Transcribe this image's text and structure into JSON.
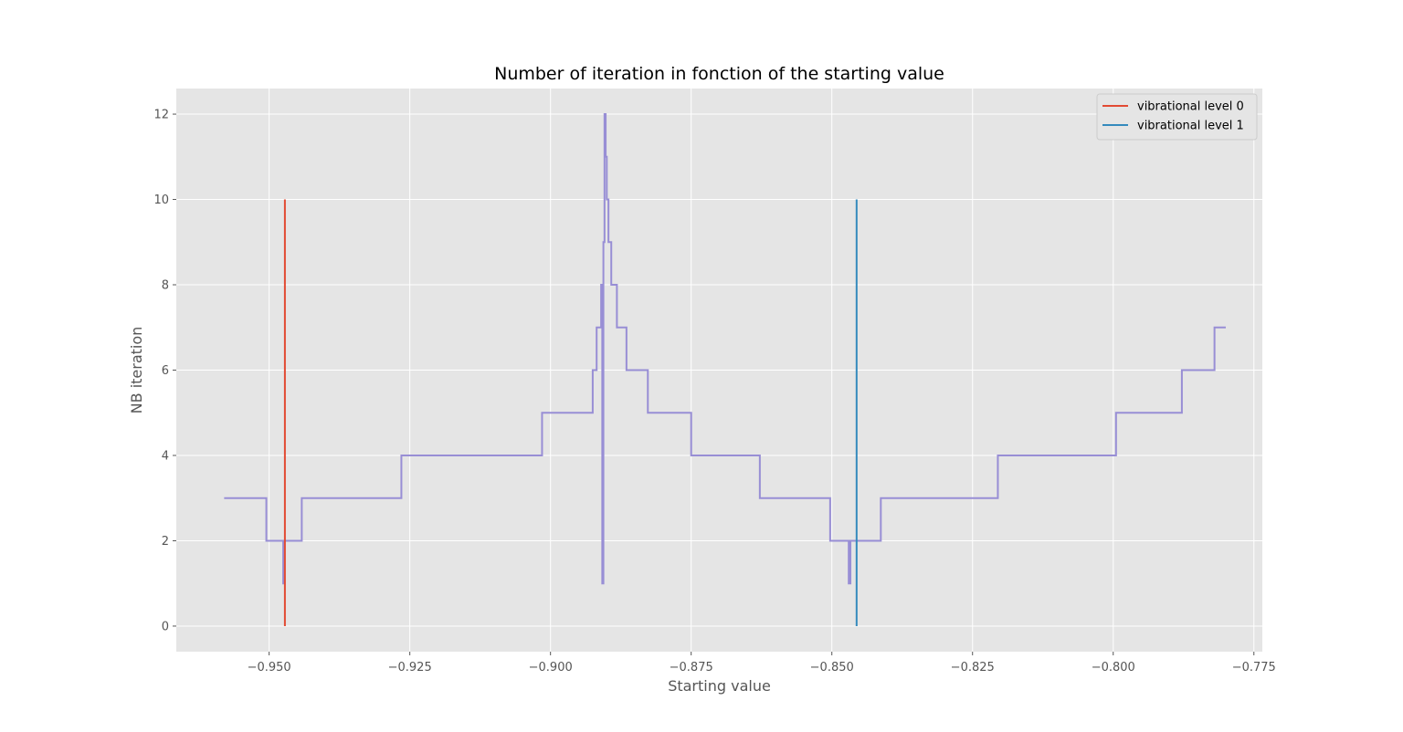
{
  "chart_data": {
    "type": "line",
    "title": "Number of iteration in fonction of the starting value",
    "xlabel": "Starting value",
    "ylabel": "NB iteration",
    "xlim": [
      -0.9665,
      -0.7735
    ],
    "ylim": [
      -0.6,
      12.6
    ],
    "xticks": [
      -0.95,
      -0.925,
      -0.9,
      -0.875,
      -0.85,
      -0.825,
      -0.8,
      -0.775
    ],
    "xtick_labels": [
      "−0.950",
      "−0.925",
      "−0.900",
      "−0.875",
      "−0.850",
      "−0.825",
      "−0.800",
      "−0.775"
    ],
    "yticks": [
      0,
      2,
      4,
      6,
      8,
      10,
      12
    ],
    "ytick_labels": [
      "0",
      "2",
      "4",
      "6",
      "8",
      "10",
      "12"
    ],
    "grid": true,
    "legend_position": "top-right",
    "legend": [
      {
        "name": "vibrational level 0",
        "color": "#E24A33"
      },
      {
        "name": "vibrational level 1",
        "color": "#348ABD"
      }
    ],
    "vlines": [
      {
        "name": "vibrational level 0",
        "x": -0.9472,
        "ymin": 0,
        "ymax": 10,
        "color": "#E24A33"
      },
      {
        "name": "vibrational level 1",
        "x": -0.8456,
        "ymin": 0,
        "ymax": 10,
        "color": "#348ABD"
      }
    ],
    "series": [
      {
        "color": "#988ED5",
        "points": [
          [
            -0.958,
            3
          ],
          [
            -0.9505,
            3
          ],
          [
            -0.9505,
            2
          ],
          [
            -0.9475,
            2
          ],
          [
            -0.9475,
            1
          ],
          [
            -0.9473,
            1
          ],
          [
            -0.9473,
            2
          ],
          [
            -0.9442,
            2
          ],
          [
            -0.9442,
            3
          ],
          [
            -0.9265,
            3
          ],
          [
            -0.9265,
            4
          ],
          [
            -0.9015,
            4
          ],
          [
            -0.9015,
            5
          ],
          [
            -0.8925,
            5
          ],
          [
            -0.8925,
            6
          ],
          [
            -0.8918,
            6
          ],
          [
            -0.8918,
            7
          ],
          [
            -0.891,
            7
          ],
          [
            -0.891,
            8
          ],
          [
            -0.8908,
            8
          ],
          [
            -0.8908,
            1
          ],
          [
            -0.8906,
            1
          ],
          [
            -0.8906,
            9
          ],
          [
            -0.8904,
            9
          ],
          [
            -0.8904,
            12
          ],
          [
            -0.8902,
            12
          ],
          [
            -0.8902,
            11
          ],
          [
            -0.89,
            11
          ],
          [
            -0.89,
            10
          ],
          [
            -0.8897,
            10
          ],
          [
            -0.8897,
            9
          ],
          [
            -0.8892,
            9
          ],
          [
            -0.8892,
            8
          ],
          [
            -0.8882,
            8
          ],
          [
            -0.8882,
            7
          ],
          [
            -0.8865,
            7
          ],
          [
            -0.8865,
            6
          ],
          [
            -0.8827,
            6
          ],
          [
            -0.8827,
            5
          ],
          [
            -0.875,
            5
          ],
          [
            -0.875,
            4
          ],
          [
            -0.8628,
            4
          ],
          [
            -0.8628,
            3
          ],
          [
            -0.8503,
            3
          ],
          [
            -0.8503,
            2
          ],
          [
            -0.847,
            2
          ],
          [
            -0.847,
            1
          ],
          [
            -0.8467,
            1
          ],
          [
            -0.8467,
            2
          ],
          [
            -0.8413,
            2
          ],
          [
            -0.8413,
            3
          ],
          [
            -0.8205,
            3
          ],
          [
            -0.8205,
            4
          ],
          [
            -0.7995,
            4
          ],
          [
            -0.7995,
            5
          ],
          [
            -0.7878,
            5
          ],
          [
            -0.7878,
            6
          ],
          [
            -0.782,
            6
          ],
          [
            -0.782,
            7
          ],
          [
            -0.78,
            7
          ]
        ]
      }
    ]
  }
}
